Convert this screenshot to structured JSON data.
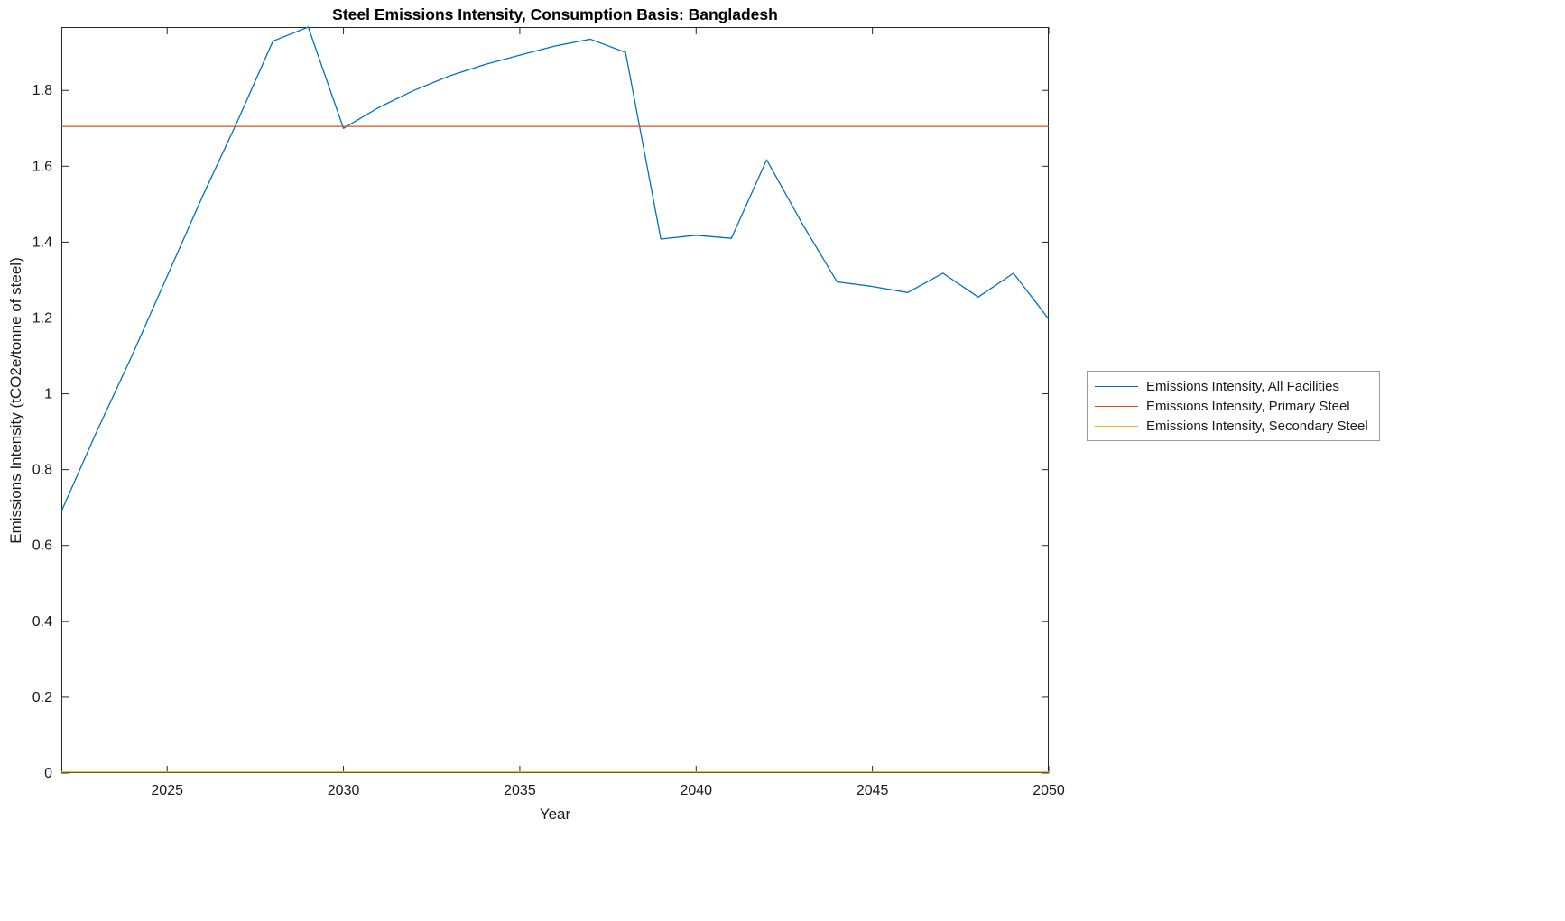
{
  "page": {
    "background_color": "#ffffff"
  },
  "chart_data": {
    "type": "line",
    "title": "Steel Emissions Intensity, Consumption Basis: Bangladesh",
    "xlabel": "Year",
    "ylabel": "Emissions Intensity (tCO2e/tonne of steel)",
    "xlim": [
      2022,
      2050
    ],
    "ylim": [
      0,
      1.967
    ],
    "x_ticks": [
      2025,
      2030,
      2035,
      2040,
      2045,
      2050
    ],
    "y_ticks": [
      0,
      0.2,
      0.4,
      0.6,
      0.8,
      1,
      1.2,
      1.4,
      1.6,
      1.8
    ],
    "y_tick_labels": [
      "0",
      "0.2",
      "0.4",
      "0.6",
      "0.8",
      "1",
      "1.2",
      "1.4",
      "1.6",
      "1.8"
    ],
    "grid": false,
    "legend_position": "outside-right",
    "axis_color": "#262626",
    "x": [
      2022,
      2023,
      2024,
      2025,
      2026,
      2027,
      2028,
      2029,
      2030,
      2031,
      2032,
      2033,
      2034,
      2035,
      2036,
      2037,
      2038,
      2039,
      2040,
      2041,
      2042,
      2043,
      2044,
      2045,
      2046,
      2047,
      2048,
      2049,
      2050
    ],
    "series": [
      {
        "name": "Emissions Intensity, All Facilities",
        "color": "#0072BD",
        "values": [
          0.69,
          0.9,
          1.1,
          1.31,
          1.52,
          1.72,
          1.93,
          1.967,
          1.7,
          1.755,
          1.8,
          1.838,
          1.868,
          1.893,
          1.917,
          1.935,
          1.9,
          1.408,
          1.418,
          1.41,
          1.617,
          1.45,
          1.295,
          1.283,
          1.267,
          1.318,
          1.255,
          1.318,
          1.197
        ]
      },
      {
        "name": "Emissions Intensity, Primary Steel",
        "color": "#D95319",
        "constant": 1.705
      },
      {
        "name": "Emissions Intensity, Secondary Steel",
        "color": "#EDB120",
        "constant": 0.003
      }
    ]
  }
}
